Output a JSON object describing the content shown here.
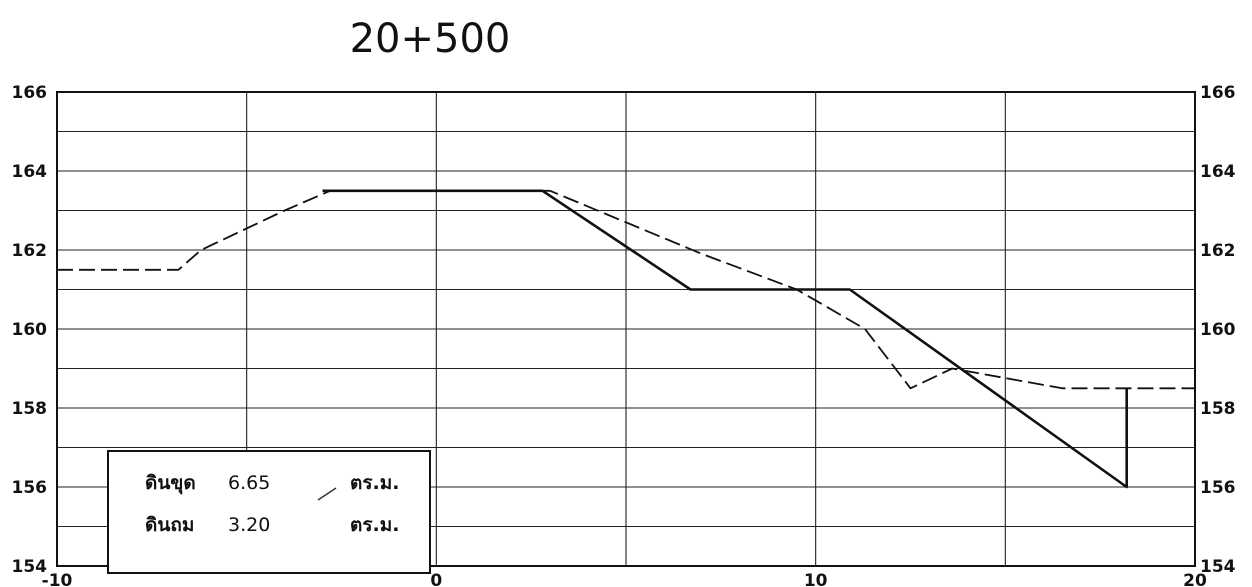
{
  "chart_data": {
    "type": "line",
    "title": "20+500",
    "xlabel": "",
    "ylabel": "",
    "xlim": [
      -10,
      20
    ],
    "ylim": [
      154,
      166
    ],
    "x_ticks": [
      -10,
      0,
      10,
      20
    ],
    "x_tick_labels": [
      "-10",
      "0",
      "10",
      "20"
    ],
    "y_ticks": [
      154,
      156,
      158,
      160,
      162,
      164,
      166
    ],
    "y_tick_labels": [
      "154",
      "156",
      "158",
      "160",
      "162",
      "164",
      "166"
    ],
    "grid": {
      "vertical_every": 5,
      "horizontal_every": 1
    },
    "series": [
      {
        "style": "dashed",
        "points": [
          [
            -10,
            161.5
          ],
          [
            -6.8,
            161.5
          ],
          [
            -6.2,
            162.0
          ],
          [
            -4.0,
            163.0
          ],
          [
            -2.8,
            163.5
          ],
          [
            3.0,
            163.5
          ],
          [
            7.0,
            161.9
          ],
          [
            9.5,
            161.0
          ],
          [
            11.3,
            160.0
          ],
          [
            12.5,
            158.5
          ],
          [
            13.6,
            159.0
          ],
          [
            16.5,
            158.5
          ],
          [
            20,
            158.5
          ]
        ]
      },
      {
        "style": "solid",
        "points": [
          [
            -3.0,
            163.5
          ],
          [
            2.8,
            163.5
          ],
          [
            6.7,
            161.0
          ],
          [
            10.9,
            161.0
          ],
          [
            18.2,
            156.0
          ],
          [
            18.2,
            158.5
          ]
        ]
      }
    ],
    "legend": {
      "placement": "bottom-left",
      "rows": [
        {
          "label": "ดินขุด",
          "value": "6.65",
          "unit": "ตร.ม."
        },
        {
          "label": "ดินถม",
          "value": "3.20",
          "unit": "ตร.ม."
        }
      ]
    }
  }
}
